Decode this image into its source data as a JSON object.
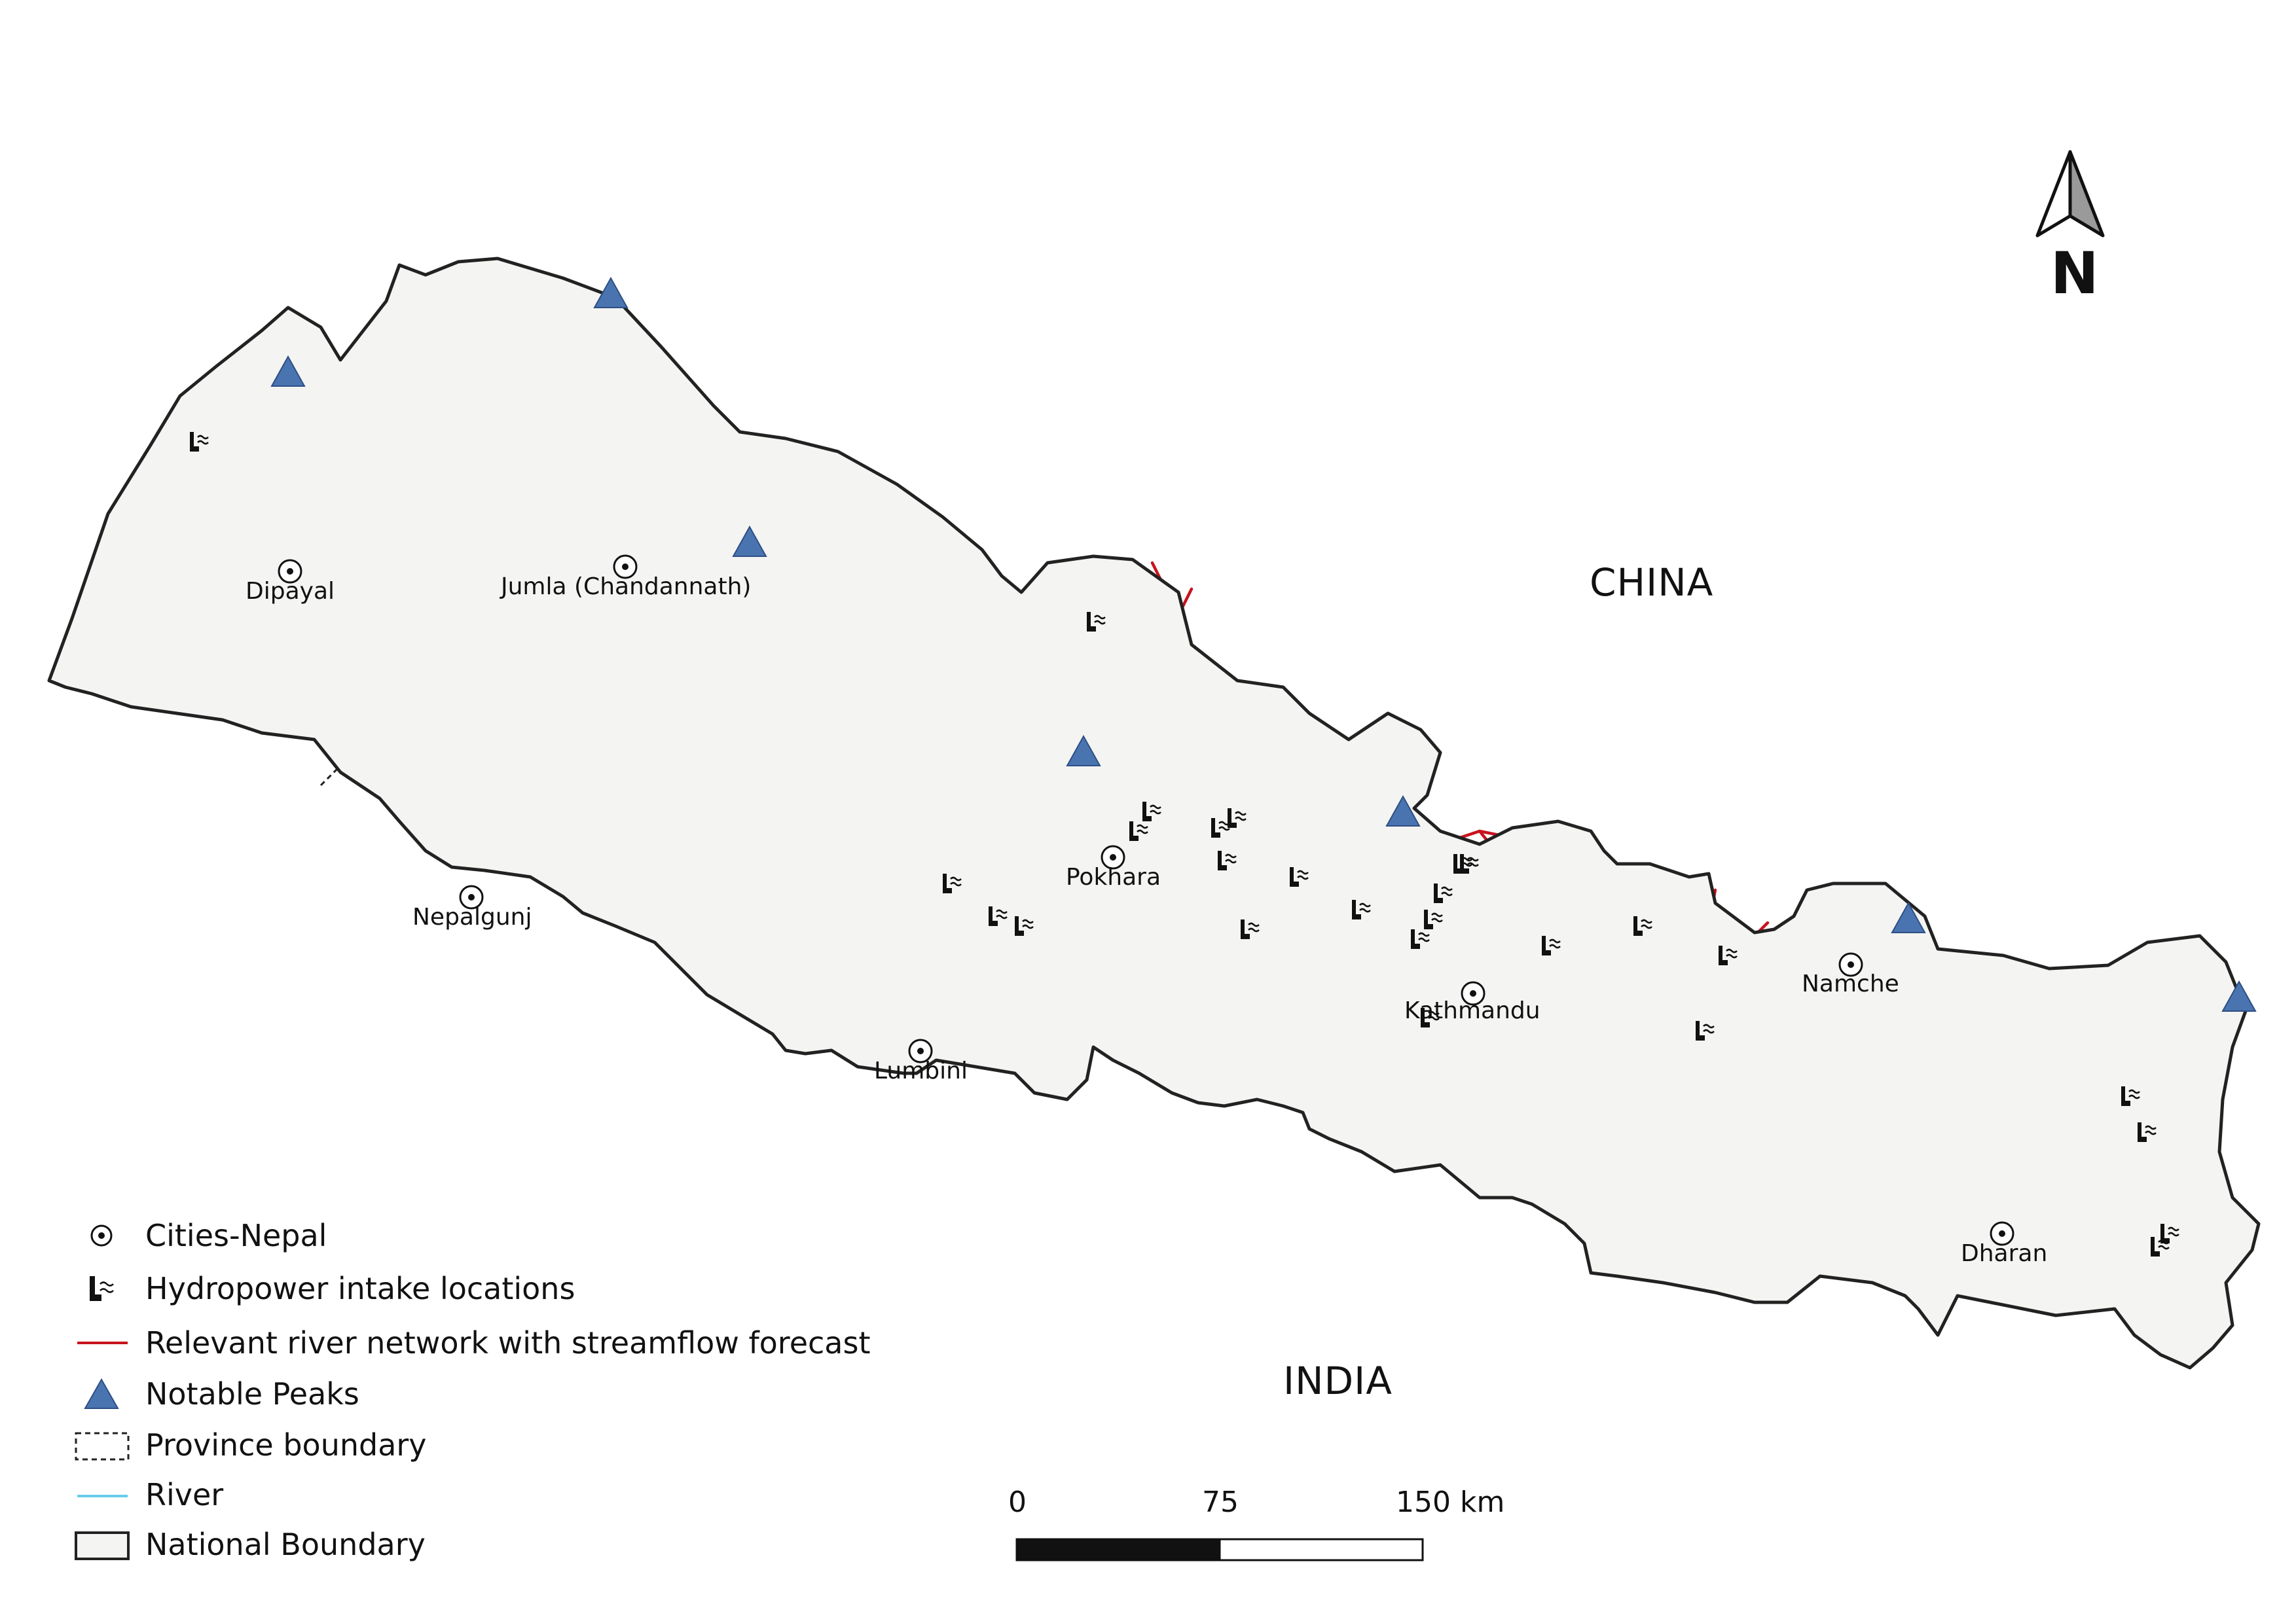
{
  "map": {
    "countries": {
      "north": "CHINA",
      "south": "INDIA"
    },
    "cities": [
      {
        "name": "Dipayal"
      },
      {
        "name": "Jumla (Chandannath)"
      },
      {
        "name": "Nepalgunj"
      },
      {
        "name": "Lumbini"
      },
      {
        "name": "Pokhara"
      },
      {
        "name": "Kathmandu"
      },
      {
        "name": "Namche"
      },
      {
        "name": "Dharan"
      }
    ],
    "north_arrow_label": "N",
    "colors": {
      "river": "#67cdea",
      "forecast_river": "#c8141e",
      "peak": "#4a74b0",
      "land": "#f4f4f2",
      "boundary": "#222222"
    }
  },
  "legend": {
    "items": [
      {
        "label": "Cities-Nepal",
        "icon": "city-dot-icon"
      },
      {
        "label": "Hydropower intake locations",
        "icon": "hydropower-intake-icon"
      },
      {
        "label": "Relevant river network with streamflow forecast",
        "icon": "red-line-icon"
      },
      {
        "label": "Notable Peaks",
        "icon": "triangle-peak-icon"
      },
      {
        "label": "Province boundary",
        "icon": "dashed-box-icon"
      },
      {
        "label": "River",
        "icon": "blue-line-icon"
      },
      {
        "label": "National Boundary",
        "icon": "solid-box-icon"
      }
    ]
  },
  "scale_bar": {
    "labels": [
      "0",
      "75",
      "150 km"
    ]
  }
}
